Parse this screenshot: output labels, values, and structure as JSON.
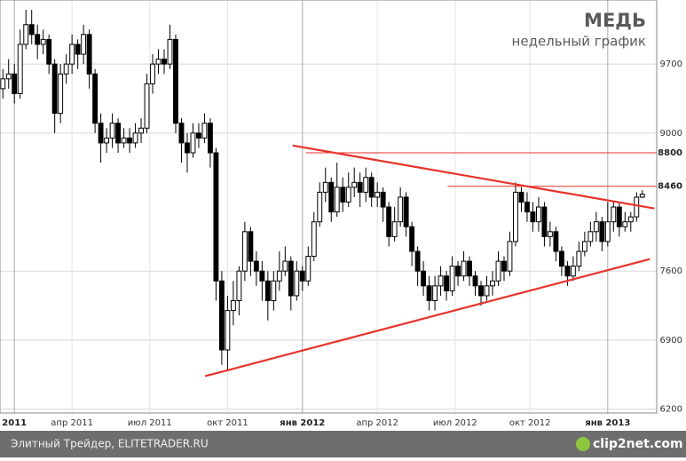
{
  "chart_data": {
    "type": "candlestick",
    "title": "МЕДЬ",
    "subtitle": "недельный график",
    "up_color": "#ffffff",
    "down_color": "#000000",
    "line_color": "#e8322b",
    "xlim": [
      -0.5,
      113.5
    ],
    "ylim": [
      6160,
      10350
    ],
    "yticks": [
      6200,
      6900,
      7600,
      9000,
      9700
    ],
    "xticks": [
      {
        "value": 2,
        "label": "2011",
        "bold": true
      },
      {
        "value": 12,
        "label": "апр 2011"
      },
      {
        "value": 25.5,
        "label": "июл 2011"
      },
      {
        "value": 39,
        "label": "окт 2011"
      },
      {
        "value": 52,
        "label": "янв 2012",
        "bold": true
      },
      {
        "value": 65,
        "label": "апр 2012"
      },
      {
        "value": 78.5,
        "label": "июл 2012"
      },
      {
        "value": 91.5,
        "label": "окт 2012"
      },
      {
        "value": 105,
        "label": "янв 2013",
        "bold": true
      }
    ],
    "grid": true,
    "levels": [
      {
        "value": 8800,
        "start": 52.6
      },
      {
        "value": 8460,
        "start": 77.2
      }
    ],
    "trendlines": [
      {
        "x": [
          50.3,
          113.1
        ],
        "y": [
          8874,
          8235
        ]
      },
      {
        "x": [
          35.1,
          112.3
        ],
        "y": [
          6534,
          7722
        ]
      }
    ],
    "candles": [
      [
        9450,
        9650,
        9350,
        9550
      ],
      [
        9550,
        9750,
        9450,
        9600
      ],
      [
        9600,
        9700,
        9300,
        9400
      ],
      [
        9400,
        10050,
        9350,
        9900
      ],
      [
        9900,
        10250,
        9850,
        10100
      ],
      [
        10100,
        10250,
        9900,
        10000
      ],
      [
        10000,
        10100,
        9750,
        9900
      ],
      [
        9900,
        10050,
        9800,
        9950
      ],
      [
        9950,
        10000,
        9600,
        9700
      ],
      [
        9700,
        9750,
        9000,
        9200
      ],
      [
        9200,
        9700,
        9100,
        9600
      ],
      [
        9600,
        9800,
        9500,
        9700
      ],
      [
        9700,
        10000,
        9600,
        9900
      ],
      [
        9900,
        9950,
        9650,
        9800
      ],
      [
        9800,
        10100,
        9700,
        10000
      ],
      [
        10000,
        10050,
        9450,
        9600
      ],
      [
        9600,
        9650,
        9000,
        9100
      ],
      [
        9100,
        9200,
        8700,
        8900
      ],
      [
        8900,
        9050,
        8800,
        8950
      ],
      [
        8950,
        9200,
        8850,
        9100
      ],
      [
        9100,
        9150,
        8800,
        8900
      ],
      [
        8900,
        9050,
        8850,
        8950
      ],
      [
        8950,
        9050,
        8800,
        8900
      ],
      [
        8900,
        9100,
        8850,
        9000
      ],
      [
        9000,
        9150,
        8900,
        9050
      ],
      [
        9050,
        9600,
        9000,
        9500
      ],
      [
        9500,
        9800,
        9400,
        9700
      ],
      [
        9700,
        9850,
        9600,
        9750
      ],
      [
        9750,
        9850,
        9600,
        9700
      ],
      [
        9700,
        10100,
        9650,
        9950
      ],
      [
        9950,
        10000,
        9000,
        9100
      ],
      [
        9100,
        9150,
        8700,
        8900
      ],
      [
        8900,
        9000,
        8600,
        8800
      ],
      [
        8800,
        9100,
        8750,
        9000
      ],
      [
        9000,
        9100,
        8850,
        8950
      ],
      [
        8950,
        9200,
        8900,
        9100
      ],
      [
        9100,
        9150,
        8650,
        8800
      ],
      [
        8800,
        8850,
        7300,
        7500
      ],
      [
        7500,
        7600,
        6650,
        6800
      ],
      [
        6800,
        7350,
        6600,
        7200
      ],
      [
        7200,
        7500,
        7050,
        7300
      ],
      [
        7300,
        7650,
        7150,
        7600
      ],
      [
        7600,
        8100,
        7500,
        8000
      ],
      [
        8000,
        8050,
        7550,
        7700
      ],
      [
        7700,
        7800,
        7450,
        7600
      ],
      [
        7600,
        7700,
        7300,
        7500
      ],
      [
        7500,
        7600,
        7100,
        7300
      ],
      [
        7300,
        7600,
        7200,
        7500
      ],
      [
        7500,
        7800,
        7400,
        7600
      ],
      [
        7600,
        7850,
        7550,
        7700
      ],
      [
        7700,
        7750,
        7200,
        7350
      ],
      [
        7350,
        7700,
        7300,
        7600
      ],
      [
        7600,
        7650,
        7400,
        7500
      ],
      [
        7500,
        7850,
        7450,
        7750
      ],
      [
        7750,
        8200,
        7700,
        8100
      ],
      [
        8100,
        8500,
        8050,
        8400
      ],
      [
        8400,
        8650,
        8300,
        8500
      ],
      [
        8500,
        8550,
        8100,
        8200
      ],
      [
        8200,
        8700,
        8150,
        8450
      ],
      [
        8450,
        8550,
        8200,
        8300
      ],
      [
        8300,
        8600,
        8250,
        8450
      ],
      [
        8450,
        8650,
        8350,
        8500
      ],
      [
        8500,
        8600,
        8250,
        8400
      ],
      [
        8400,
        8650,
        8300,
        8550
      ],
      [
        8550,
        8600,
        8250,
        8350
      ],
      [
        8350,
        8500,
        8250,
        8400
      ],
      [
        8400,
        8450,
        8100,
        8250
      ],
      [
        8250,
        8300,
        7850,
        7950
      ],
      [
        7950,
        8250,
        7900,
        8100
      ],
      [
        8100,
        8450,
        8050,
        8350
      ],
      [
        8350,
        8400,
        7950,
        8050
      ],
      [
        8050,
        8100,
        7650,
        7800
      ],
      [
        7800,
        7850,
        7450,
        7600
      ],
      [
        7600,
        7700,
        7350,
        7450
      ],
      [
        7450,
        7550,
        7200,
        7300
      ],
      [
        7300,
        7550,
        7200,
        7450
      ],
      [
        7450,
        7650,
        7350,
        7550
      ],
      [
        7550,
        7600,
        7300,
        7400
      ],
      [
        7400,
        7750,
        7350,
        7650
      ],
      [
        7650,
        7700,
        7450,
        7550
      ],
      [
        7550,
        7800,
        7500,
        7700
      ],
      [
        7700,
        7750,
        7450,
        7550
      ],
      [
        7550,
        7600,
        7350,
        7450
      ],
      [
        7450,
        7500,
        7250,
        7350
      ],
      [
        7350,
        7550,
        7300,
        7450
      ],
      [
        7450,
        7600,
        7350,
        7500
      ],
      [
        7500,
        7800,
        7450,
        7700
      ],
      [
        7700,
        7750,
        7500,
        7600
      ],
      [
        7600,
        8000,
        7550,
        7900
      ],
      [
        7900,
        8500,
        7850,
        8400
      ],
      [
        8400,
        8450,
        8200,
        8300
      ],
      [
        8300,
        8400,
        8100,
        8200
      ],
      [
        8200,
        8300,
        8000,
        8100
      ],
      [
        8100,
        8350,
        8000,
        8250
      ],
      [
        8250,
        8300,
        7850,
        7950
      ],
      [
        7950,
        8100,
        7850,
        8000
      ],
      [
        8000,
        8050,
        7700,
        7800
      ],
      [
        7800,
        7850,
        7550,
        7650
      ],
      [
        7650,
        7700,
        7450,
        7550
      ],
      [
        7550,
        7750,
        7500,
        7650
      ],
      [
        7650,
        7900,
        7600,
        7800
      ],
      [
        7800,
        8000,
        7750,
        7900
      ],
      [
        7900,
        8100,
        7850,
        8000
      ],
      [
        8000,
        8200,
        7900,
        8100
      ],
      [
        8100,
        8150,
        7800,
        7900
      ],
      [
        7900,
        8300,
        7850,
        8100
      ],
      [
        8100,
        8300,
        8000,
        8250
      ],
      [
        8250,
        8300,
        7950,
        8050
      ],
      [
        8050,
        8200,
        8000,
        8100
      ],
      [
        8100,
        8200,
        8000,
        8150
      ],
      [
        8150,
        8400,
        8100,
        8350
      ],
      [
        8350,
        8420,
        8340,
        8380
      ]
    ]
  },
  "footer": "Элитный Трейдер, ELITETRADER.RU",
  "watermark": "clip2net.com"
}
